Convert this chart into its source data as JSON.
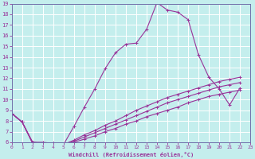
{
  "xlabel": "Windchill (Refroidissement éolien,°C)",
  "bg_color": "#c4eeed",
  "line_color": "#993399",
  "grid_color": "#b0d8d8",
  "xlim": [
    0,
    23
  ],
  "ylim": [
    6,
    19
  ],
  "xticks": [
    0,
    1,
    2,
    3,
    4,
    5,
    6,
    7,
    8,
    9,
    10,
    11,
    12,
    13,
    14,
    15,
    16,
    17,
    18,
    19,
    20,
    21,
    22,
    23
  ],
  "yticks": [
    6,
    7,
    8,
    9,
    10,
    11,
    12,
    13,
    14,
    15,
    16,
    17,
    18,
    19
  ],
  "line1_x": [
    0,
    1,
    2,
    3,
    4,
    5,
    6,
    7,
    8,
    9,
    10,
    11,
    12,
    13,
    14,
    15,
    16,
    17,
    18,
    19,
    20,
    21,
    22
  ],
  "line1_y": [
    8.7,
    7.9,
    5.9,
    5.9,
    5.8,
    5.8,
    7.5,
    9.3,
    11.0,
    12.9,
    14.4,
    15.2,
    15.3,
    16.6,
    19.1,
    18.4,
    18.2,
    17.5,
    14.2,
    12.1,
    11.0,
    9.5,
    11.1
  ],
  "line2_x": [
    0,
    1,
    2,
    3,
    4,
    5,
    6,
    7,
    8,
    9,
    10,
    11,
    12,
    13,
    14,
    15,
    16,
    17,
    18,
    19,
    20,
    21,
    22
  ],
  "line2_y": [
    8.7,
    7.9,
    6.0,
    6.0,
    5.9,
    5.8,
    6.2,
    6.7,
    7.1,
    7.6,
    8.0,
    8.5,
    9.0,
    9.4,
    9.8,
    10.2,
    10.5,
    10.8,
    11.1,
    11.4,
    11.7,
    11.9,
    12.1
  ],
  "line3_x": [
    0,
    1,
    2,
    3,
    4,
    5,
    6,
    7,
    8,
    9,
    10,
    11,
    12,
    13,
    14,
    15,
    16,
    17,
    18,
    19,
    20,
    21,
    22
  ],
  "line3_y": [
    8.7,
    7.9,
    6.0,
    5.9,
    5.9,
    5.8,
    6.1,
    6.5,
    6.9,
    7.3,
    7.7,
    8.1,
    8.5,
    8.9,
    9.3,
    9.7,
    10.0,
    10.3,
    10.6,
    10.9,
    11.2,
    11.4,
    11.6
  ],
  "line4_x": [
    0,
    1,
    2,
    3,
    4,
    5,
    6,
    7,
    8,
    9,
    10,
    11,
    12,
    13,
    14,
    15,
    16,
    17,
    18,
    19,
    20,
    21,
    22
  ],
  "line4_y": [
    8.7,
    7.9,
    6.0,
    5.9,
    5.9,
    5.8,
    6.0,
    6.3,
    6.6,
    7.0,
    7.3,
    7.7,
    8.0,
    8.4,
    8.7,
    9.0,
    9.3,
    9.7,
    10.0,
    10.3,
    10.5,
    10.7,
    10.9
  ]
}
